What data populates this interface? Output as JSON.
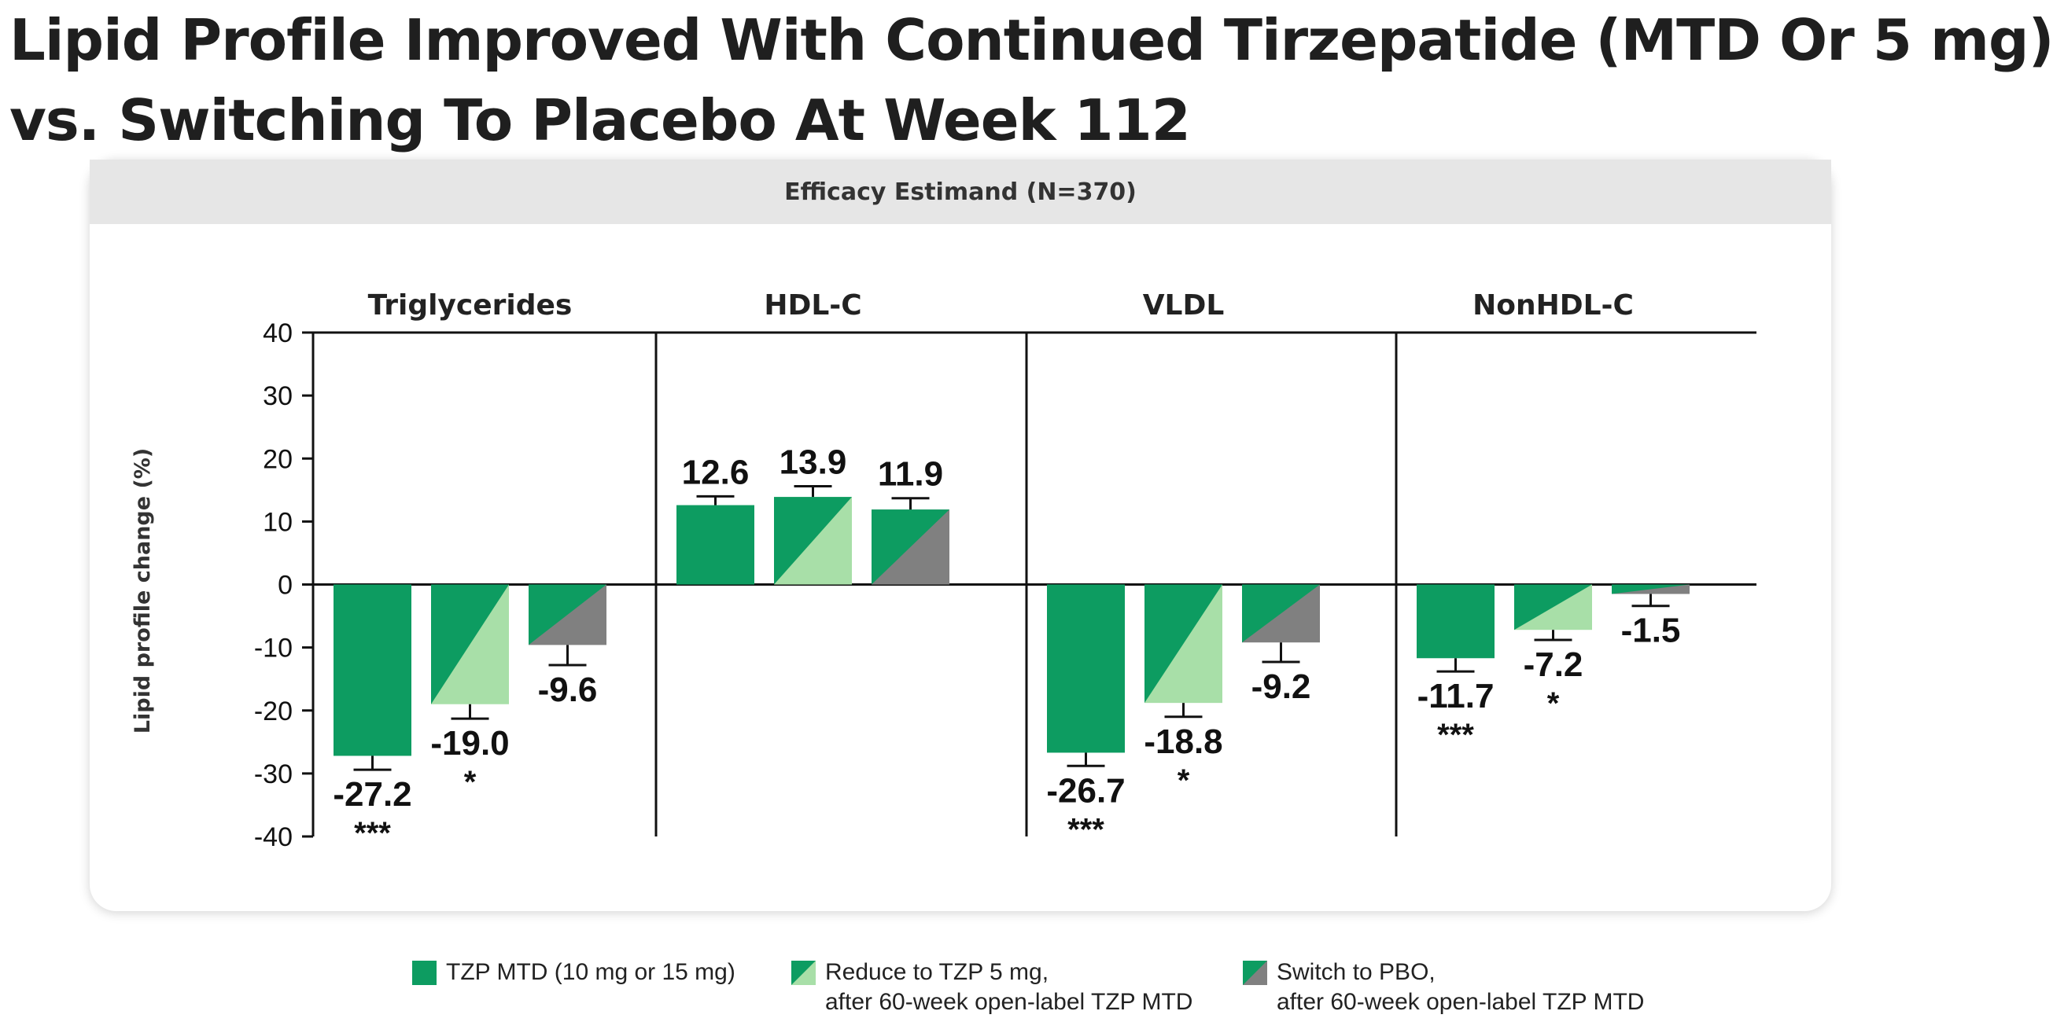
{
  "title": {
    "line1": "Lipid Profile Improved With Continued Tirzepatide (MTD Or 5 mg)",
    "line2": "vs. Switching To Placebo At Week 112"
  },
  "panel": {
    "header": "Efficacy Estimand (N=370)"
  },
  "colors": {
    "dark_green": "#0d9c61",
    "light_green": "#a8dfa8",
    "gray": "#808080",
    "axis": "#111111",
    "text": "#111111"
  },
  "chart_data": {
    "type": "bar",
    "ylabel": "Lipid profile change (%)",
    "ylim": [
      -40,
      40
    ],
    "yticks": [
      40,
      30,
      20,
      10,
      0,
      -10,
      -20,
      -30,
      -40
    ],
    "categories": [
      "Triglycerides",
      "HDL-C",
      "VLDL",
      "NonHDL-C"
    ],
    "series": [
      {
        "name": "TZP MTD (10 mg or 15 mg)",
        "values": [
          -27.2,
          12.6,
          -26.7,
          -11.7
        ],
        "labels": [
          "-27.2",
          "12.6",
          "-26.7",
          "-11.7"
        ],
        "significance": [
          "***",
          "",
          "***",
          "***"
        ],
        "error": [
          2.2,
          1.4,
          2.1,
          2.1
        ]
      },
      {
        "name": "Reduce to TZP 5 mg, after 60-week open-label TZP MTD",
        "values": [
          -19.0,
          13.9,
          -18.8,
          -7.2
        ],
        "labels": [
          "-19.0",
          "13.9",
          "-18.8",
          "-7.2"
        ],
        "significance": [
          "*",
          "",
          "*",
          "*"
        ],
        "error": [
          2.3,
          1.7,
          2.2,
          1.6
        ]
      },
      {
        "name": "Switch to PBO, after 60-week open-label TZP MTD",
        "values": [
          -9.6,
          11.9,
          -9.2,
          -1.5
        ],
        "labels": [
          "-9.6",
          "11.9",
          "-9.2",
          "-1.5"
        ],
        "significance": [
          "",
          "",
          "",
          ""
        ],
        "error": [
          3.2,
          1.8,
          3.1,
          1.9
        ]
      }
    ]
  },
  "legend": [
    {
      "line1": "TZP MTD (10 mg or 15 mg)",
      "line2": ""
    },
    {
      "line1": "Reduce to TZP 5 mg,",
      "line2": "after 60-week open-label TZP MTD"
    },
    {
      "line1": "Switch to PBO,",
      "line2": "after 60-week open-label TZP MTD"
    }
  ]
}
